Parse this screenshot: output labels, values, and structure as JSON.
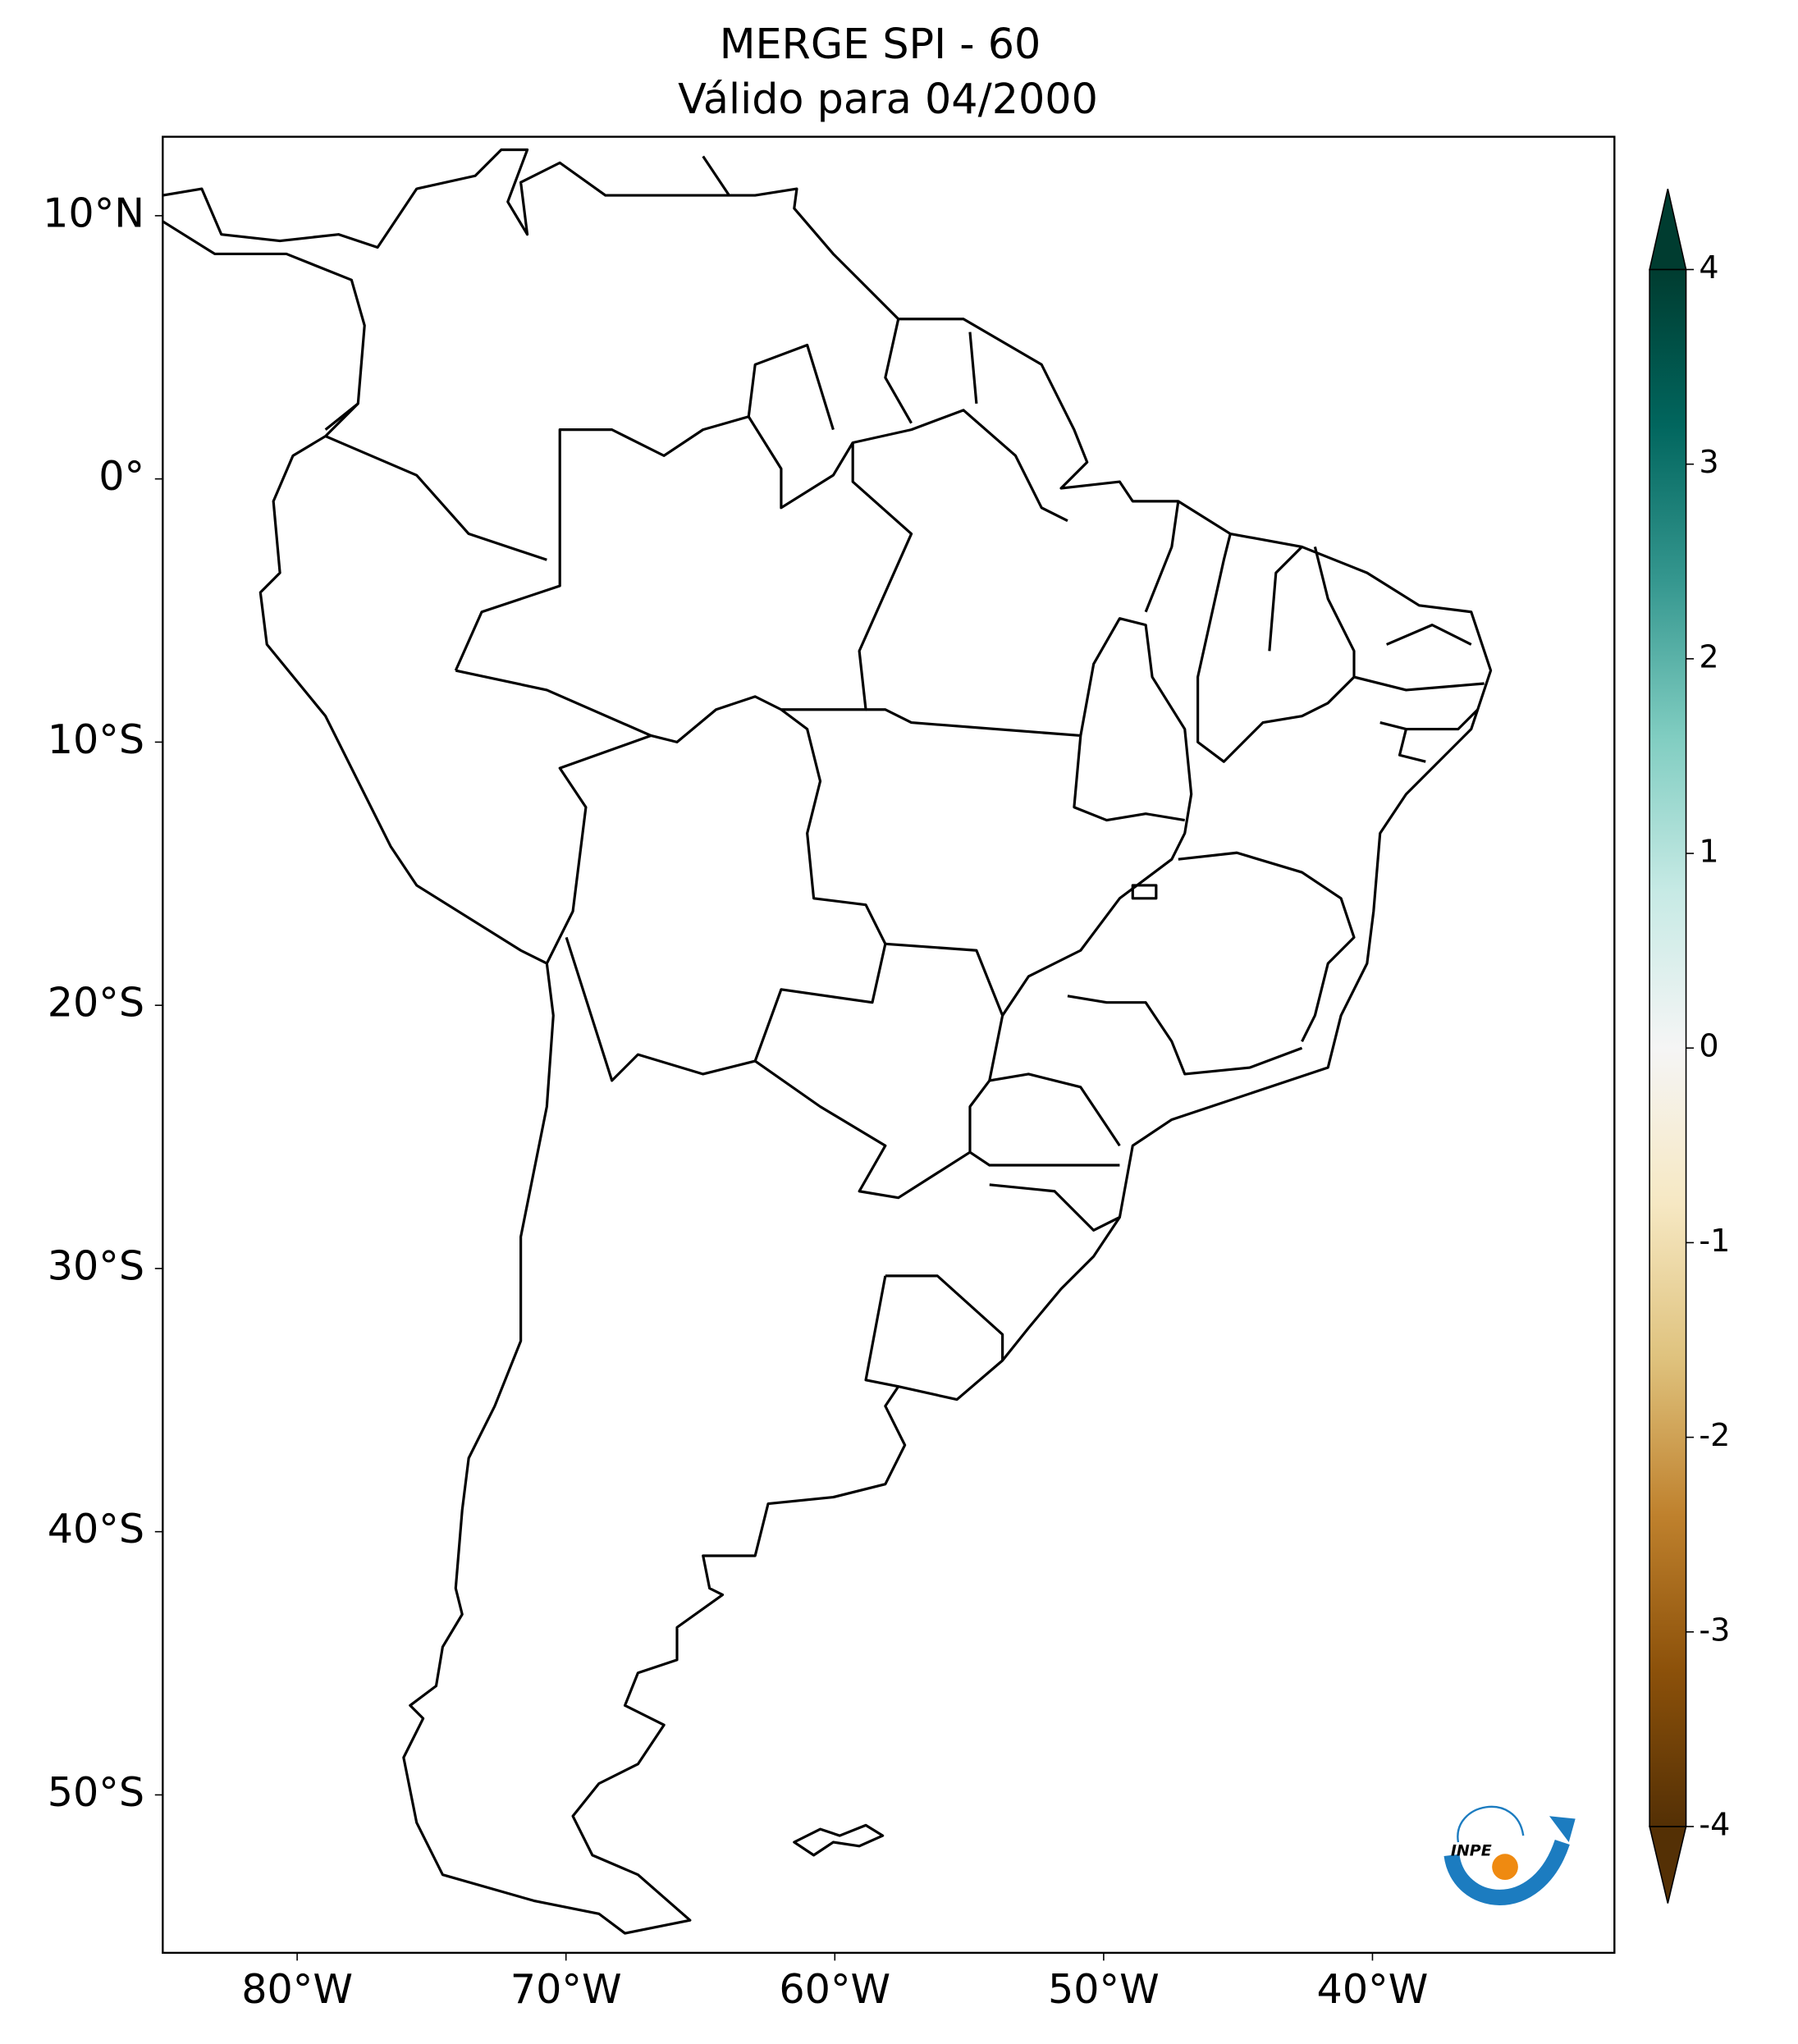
{
  "title": "MERGE   SPI - 60",
  "subtitle": "Válido para 04/2000",
  "map": {
    "xlim": [
      -85,
      -31
    ],
    "ylim": [
      -56,
      13
    ],
    "xticks": [
      {
        "value": -80,
        "label": "80°W"
      },
      {
        "value": -70,
        "label": "70°W"
      },
      {
        "value": -60,
        "label": "60°W"
      },
      {
        "value": -50,
        "label": "50°W"
      },
      {
        "value": -40,
        "label": "40°W"
      }
    ],
    "yticks": [
      {
        "value": 10,
        "label": "10°N"
      },
      {
        "value": 0,
        "label": "0°"
      },
      {
        "value": -10,
        "label": "10°S"
      },
      {
        "value": -20,
        "label": "20°S"
      },
      {
        "value": -30,
        "label": "30°S"
      },
      {
        "value": -40,
        "label": "40°S"
      },
      {
        "value": -50,
        "label": "50°S"
      }
    ]
  },
  "colorbar": {
    "lim": [
      -4,
      4
    ],
    "ticks": [
      -4,
      -3,
      -2,
      -1,
      0,
      1,
      2,
      3,
      4
    ],
    "colors": [
      "#543005",
      "#8c510a",
      "#bf812d",
      "#dfc27d",
      "#f6e8c3",
      "#f5f5f5",
      "#c7eae5",
      "#80cdc1",
      "#35978f",
      "#01665e",
      "#003c30"
    ]
  },
  "logo": "INPE"
}
